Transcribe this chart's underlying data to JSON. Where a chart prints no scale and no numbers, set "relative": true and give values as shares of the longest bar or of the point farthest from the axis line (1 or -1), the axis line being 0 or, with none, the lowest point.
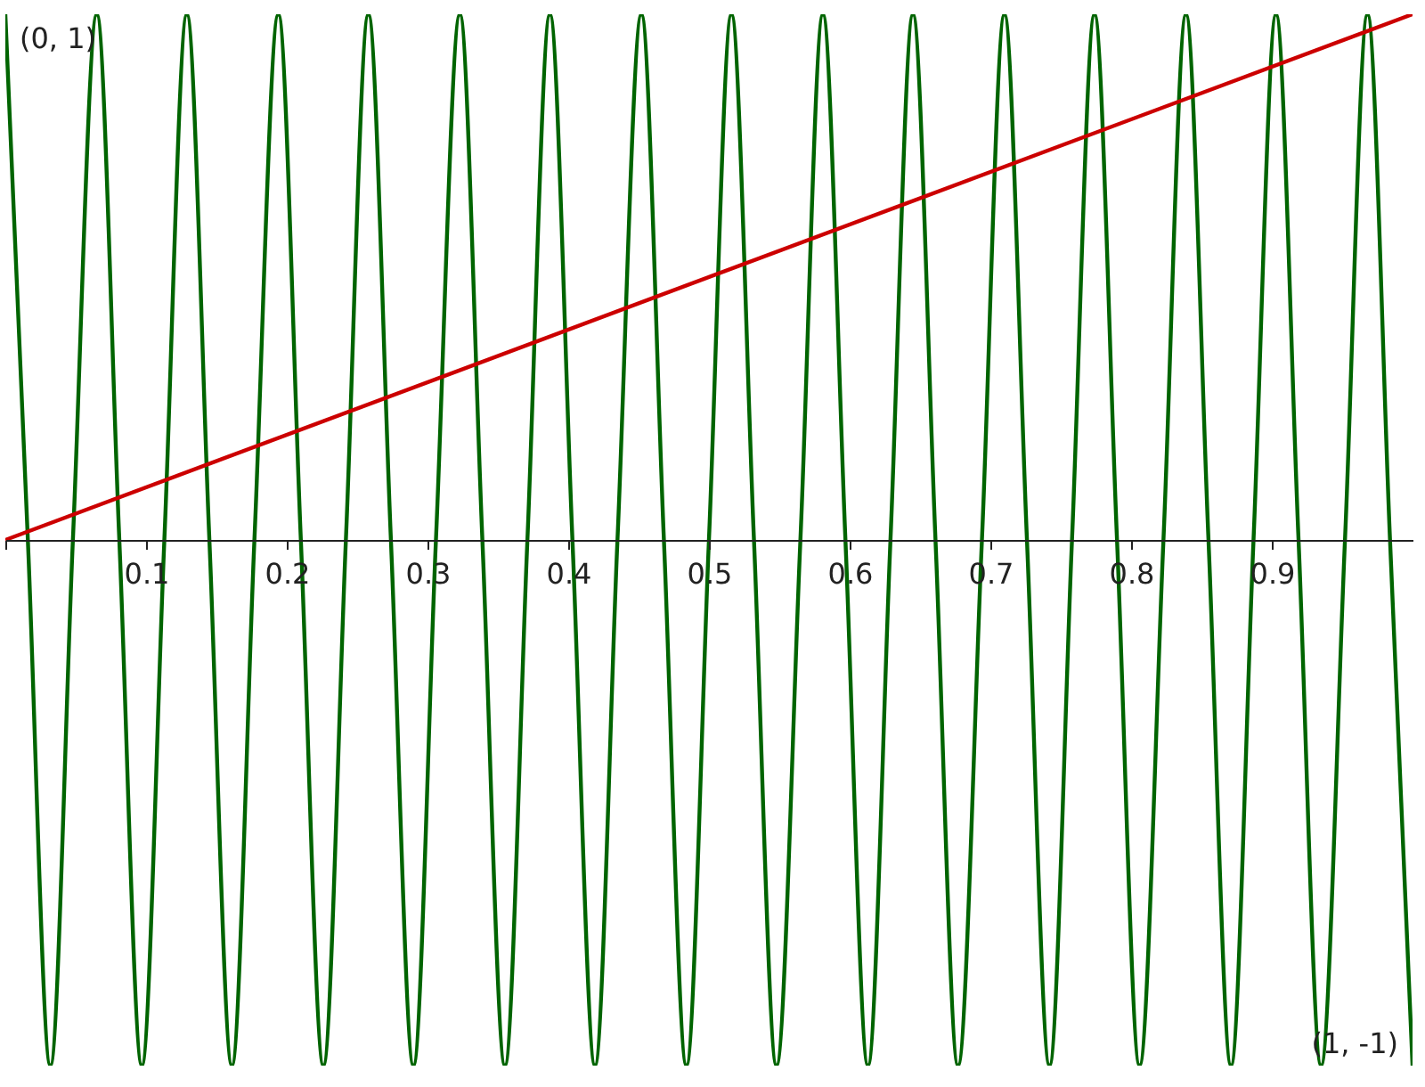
{
  "chart_data": {
    "type": "line",
    "xlim": [
      0,
      1
    ],
    "relative": true,
    "xticks": [
      {
        "value": 0,
        "label": null
      },
      0.1,
      0.2,
      0.3,
      0.4,
      0.5,
      0.6,
      0.7,
      0.8,
      0.9
    ],
    "tick_labels": "x",
    "grid": false,
    "marker": "none",
    "line_style": "solid",
    "annotations": [
      {
        "text": "(0, 1)",
        "x": 0,
        "y": 1
      },
      {
        "text": "(1, -1)",
        "x": 1,
        "y": -1
      }
    ],
    "series": [
      {
        "color": "#006400",
        "x": [
          0,
          0.016,
          0.032,
          0.048,
          0.065,
          0.081,
          0.097,
          0.113,
          0.129,
          0.145,
          0.161,
          0.177,
          0.194,
          0.21,
          0.226,
          0.242,
          0.258,
          0.274,
          0.29,
          0.306,
          0.323,
          0.339,
          0.355,
          0.371,
          0.387,
          0.403,
          0.419,
          0.435,
          0.452,
          0.468,
          0.484,
          0.5,
          0.516,
          0.532,
          0.548,
          0.565,
          0.581,
          0.597,
          0.613,
          0.629,
          0.645,
          0.661,
          0.677,
          0.694,
          0.71,
          0.726,
          0.742,
          0.758,
          0.774,
          0.79,
          0.806,
          0.823,
          0.839,
          0.855,
          0.871,
          0.887,
          0.903,
          0.919,
          0.935,
          0.952,
          0.968,
          0.984,
          1
        ],
        "values": [
          1,
          0,
          -1,
          0,
          1,
          0,
          -1,
          0,
          1,
          0,
          -1,
          0,
          1,
          0,
          -1,
          0,
          1,
          0,
          -1,
          0,
          1,
          0,
          -1,
          0,
          1,
          0,
          -1,
          0,
          1,
          0,
          -1,
          0,
          1,
          0,
          -1,
          0,
          1,
          0,
          -1,
          0,
          1,
          0,
          -1,
          0,
          1,
          0,
          -1,
          0,
          1,
          0,
          -1,
          0,
          1,
          0,
          -1,
          0,
          1,
          0,
          -1,
          0,
          1,
          0,
          -1
        ]
      },
      {
        "color": "#cc0000",
        "x": [
          0,
          1
        ],
        "values": [
          0,
          1
        ]
      }
    ]
  }
}
